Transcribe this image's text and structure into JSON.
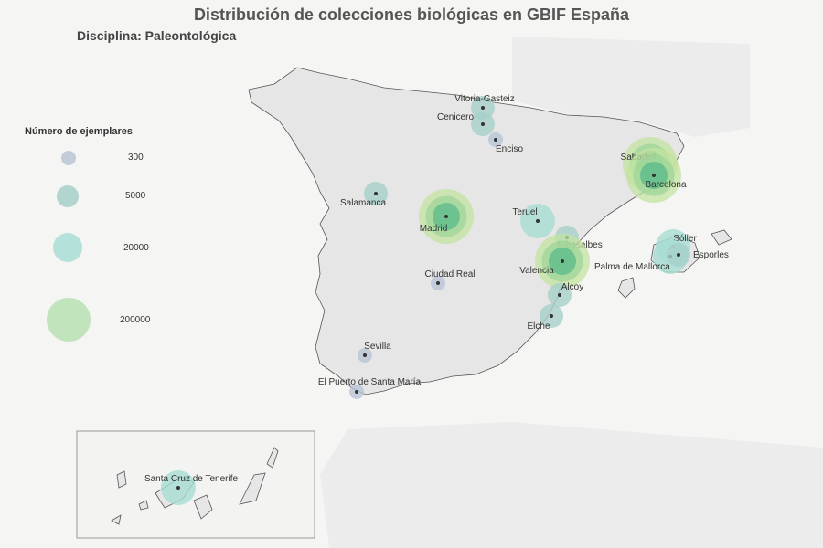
{
  "title": "Distribución de  colecciones biológicas  en GBIF España",
  "subtitle": "Disciplina: Paleontológica",
  "legend": {
    "title": "Número de ejemplares",
    "items": [
      {
        "label": "300",
        "color": "#b8c4d6"
      },
      {
        "label": "5000",
        "color": "#a6cfc9"
      },
      {
        "label": "20000",
        "color": "#a8ddd3"
      },
      {
        "label": "200000",
        "color": "#b9e1b3"
      }
    ]
  },
  "cities": [
    {
      "name": "Vitoria-Gasteiz",
      "scale": "5000"
    },
    {
      "name": "Cenicero",
      "scale": "5000"
    },
    {
      "name": "Enciso",
      "scale": "300"
    },
    {
      "name": "Sabadell",
      "scale": "200000"
    },
    {
      "name": "Barcelona",
      "scale": "200000"
    },
    {
      "name": "Salamanca",
      "scale": "5000"
    },
    {
      "name": "Madrid",
      "scale": "200000"
    },
    {
      "name": "Teruel",
      "scale": "20000"
    },
    {
      "name": "Ribesalbes",
      "scale": "5000"
    },
    {
      "name": "Valencia",
      "scale": "200000"
    },
    {
      "name": "Sóller",
      "scale": "20000"
    },
    {
      "name": "Palma de Mallorca",
      "scale": "20000"
    },
    {
      "name": "Esporles",
      "scale": "5000"
    },
    {
      "name": "Ciudad Real",
      "scale": "300"
    },
    {
      "name": "Alcoy",
      "scale": "5000"
    },
    {
      "name": "Elche",
      "scale": "5000"
    },
    {
      "name": "Sevilla",
      "scale": "300"
    },
    {
      "name": "El Puerto de Santa María",
      "scale": "300"
    },
    {
      "name": "Santa Cruz de Tenerife",
      "scale": "20000"
    }
  ]
}
